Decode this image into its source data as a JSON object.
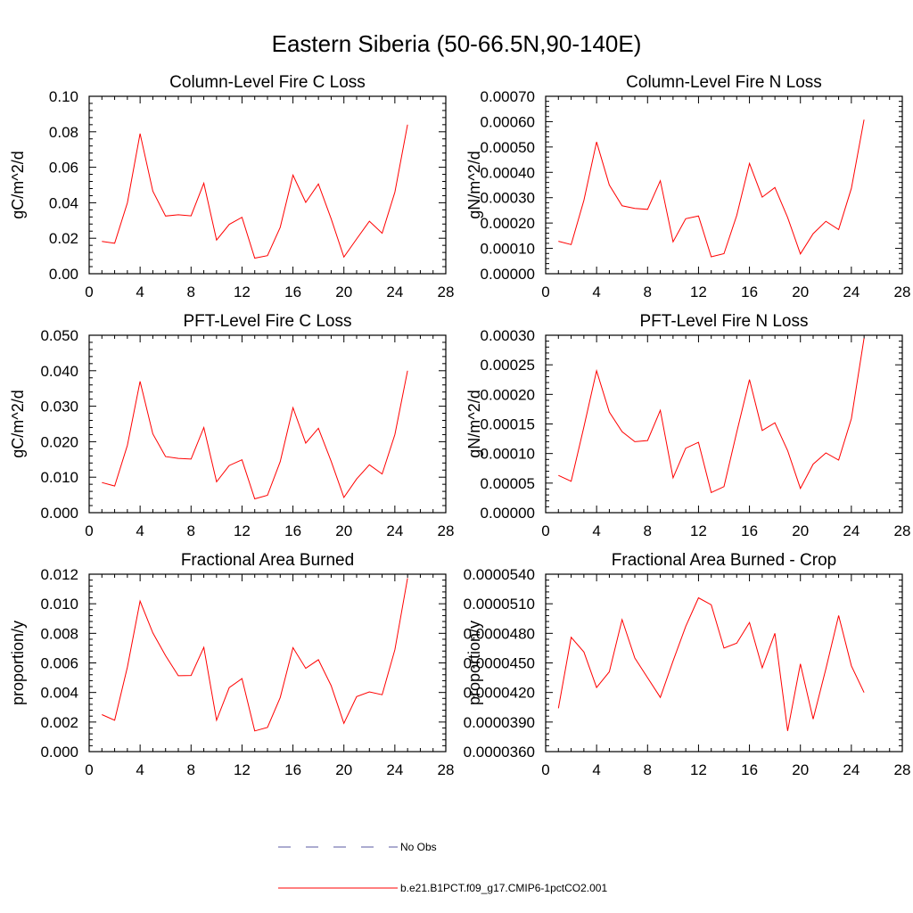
{
  "title": "Eastern Siberia (50-66.5N,90-140E)",
  "legend": {
    "placement": "bottom-center",
    "entries": [
      {
        "label": "No Obs",
        "color": "#5a5aa0",
        "style": "dashed"
      },
      {
        "label": "b.e21.B1PCT.f09_g17.CMIP6-1pctCO2.001",
        "color": "#ff0000",
        "style": "solid"
      }
    ]
  },
  "chart_data": [
    {
      "type": "line",
      "title": "Column-Level Fire C Loss",
      "ylabel": "gC/m^2/d",
      "xlim": [
        0,
        28
      ],
      "ylim": [
        0,
        0.1
      ],
      "xticks": [
        0,
        4,
        8,
        12,
        16,
        20,
        24,
        28
      ],
      "xtick_labels": [
        "0",
        "4",
        "8",
        "12",
        "16",
        "20",
        "24",
        "28"
      ],
      "yticks": [
        0,
        0.02,
        0.04,
        0.06,
        0.08,
        0.1
      ],
      "ytick_labels": [
        "0.00",
        "0.02",
        "0.04",
        "0.06",
        "0.08",
        "0.10"
      ],
      "grid": false,
      "series": [
        {
          "color": "#ff0000",
          "x": [
            1,
            2,
            3,
            4,
            5,
            6,
            7,
            8,
            9,
            10,
            11,
            12,
            13,
            14,
            15,
            16,
            17,
            18,
            19,
            20,
            21,
            22,
            23,
            24,
            25
          ],
          "values": [
            0.0182,
            0.0172,
            0.04,
            0.079,
            0.0466,
            0.0325,
            0.0332,
            0.0326,
            0.051,
            0.019,
            0.0278,
            0.0318,
            0.0088,
            0.0102,
            0.0262,
            0.0556,
            0.0402,
            0.0506,
            0.031,
            0.0094,
            0.0196,
            0.0296,
            0.0228,
            0.046,
            0.084
          ]
        }
      ]
    },
    {
      "type": "line",
      "title": "Column-Level Fire N Loss",
      "ylabel": "gN/m^2/d",
      "xlim": [
        0,
        28
      ],
      "ylim": [
        0,
        0.0007
      ],
      "xticks": [
        0,
        4,
        8,
        12,
        16,
        20,
        24,
        28
      ],
      "xtick_labels": [
        "0",
        "4",
        "8",
        "12",
        "16",
        "20",
        "24",
        "28"
      ],
      "yticks": [
        0,
        0.0001,
        0.0002,
        0.0003,
        0.0004,
        0.0005,
        0.0006,
        0.0007
      ],
      "ytick_labels": [
        "0.00000",
        "0.00010",
        "0.00020",
        "0.00030",
        "0.00040",
        "0.00050",
        "0.00060",
        "0.00070"
      ],
      "grid": false,
      "series": [
        {
          "color": "#ff0000",
          "x": [
            1,
            2,
            3,
            4,
            5,
            6,
            7,
            8,
            9,
            10,
            11,
            12,
            13,
            14,
            15,
            16,
            17,
            18,
            19,
            20,
            21,
            22,
            23,
            24,
            25
          ],
          "values": [
            0.000128,
            0.000115,
            0.00029,
            0.00052,
            0.00035,
            0.000268,
            0.000258,
            0.000254,
            0.000367,
            0.000126,
            0.000217,
            0.000228,
            6.7e-05,
            7.9e-05,
            0.00023,
            0.000435,
            0.000302,
            0.00034,
            0.000222,
            7.8e-05,
            0.000158,
            0.000207,
            0.000174,
            0.000337,
            0.000608
          ]
        }
      ]
    },
    {
      "type": "line",
      "title": "PFT-Level Fire C Loss",
      "ylabel": "gC/m^2/d",
      "xlim": [
        0,
        28
      ],
      "ylim": [
        0,
        0.05
      ],
      "xticks": [
        0,
        4,
        8,
        12,
        16,
        20,
        24,
        28
      ],
      "xtick_labels": [
        "0",
        "4",
        "8",
        "12",
        "16",
        "20",
        "24",
        "28"
      ],
      "yticks": [
        0,
        0.01,
        0.02,
        0.03,
        0.04,
        0.05
      ],
      "ytick_labels": [
        "0.000",
        "0.010",
        "0.020",
        "0.030",
        "0.040",
        "0.050"
      ],
      "grid": false,
      "series": [
        {
          "color": "#ff0000",
          "x": [
            1,
            2,
            3,
            4,
            5,
            6,
            7,
            8,
            9,
            10,
            11,
            12,
            13,
            14,
            15,
            16,
            17,
            18,
            19,
            20,
            21,
            22,
            23,
            24,
            25
          ],
          "values": [
            0.0085,
            0.0075,
            0.019,
            0.037,
            0.0222,
            0.0158,
            0.0153,
            0.0151,
            0.024,
            0.0087,
            0.0133,
            0.0149,
            0.0039,
            0.0049,
            0.0144,
            0.0296,
            0.0196,
            0.0238,
            0.0145,
            0.0043,
            0.0095,
            0.0135,
            0.0109,
            0.022,
            0.04
          ]
        }
      ]
    },
    {
      "type": "line",
      "title": "PFT-Level Fire N Loss",
      "ylabel": "gN/m^2/d",
      "xlim": [
        0,
        28
      ],
      "ylim": [
        0,
        0.0003
      ],
      "xticks": [
        0,
        4,
        8,
        12,
        16,
        20,
        24,
        28
      ],
      "xtick_labels": [
        "0",
        "4",
        "8",
        "12",
        "16",
        "20",
        "24",
        "28"
      ],
      "yticks": [
        0,
        5e-05,
        0.0001,
        0.00015,
        0.0002,
        0.00025,
        0.0003
      ],
      "ytick_labels": [
        "0.00000",
        "0.00005",
        "0.00010",
        "0.00015",
        "0.00020",
        "0.00025",
        "0.00030"
      ],
      "grid": false,
      "series": [
        {
          "color": "#ff0000",
          "x": [
            1,
            2,
            3,
            4,
            5,
            6,
            7,
            8,
            9,
            10,
            11,
            12,
            13,
            14,
            15,
            16,
            17,
            18,
            19,
            20,
            21,
            22,
            23,
            24,
            25
          ],
          "values": [
            6.3e-05,
            5.3e-05,
            0.000145,
            0.00024,
            0.00017,
            0.000137,
            0.00012,
            0.000122,
            0.000173,
            5.9e-05,
            0.000109,
            0.000119,
            3.4e-05,
            4.4e-05,
            0.000136,
            0.000225,
            0.000139,
            0.000152,
            0.000105,
            4.1e-05,
            8.2e-05,
            0.000101,
            8.9e-05,
            0.000159,
            0.000295
          ]
        }
      ]
    },
    {
      "type": "line",
      "title": "Fractional Area Burned",
      "ylabel": "proportion/y",
      "xlim": [
        0,
        28
      ],
      "ylim": [
        0,
        0.012
      ],
      "xticks": [
        0,
        4,
        8,
        12,
        16,
        20,
        24,
        28
      ],
      "xtick_labels": [
        "0",
        "4",
        "8",
        "12",
        "16",
        "20",
        "24",
        "28"
      ],
      "yticks": [
        0,
        0.002,
        0.004,
        0.006,
        0.008,
        0.01,
        0.012
      ],
      "ytick_labels": [
        "0.000",
        "0.002",
        "0.004",
        "0.006",
        "0.008",
        "0.010",
        "0.012"
      ],
      "grid": false,
      "series": [
        {
          "color": "#ff0000",
          "x": [
            1,
            2,
            3,
            4,
            5,
            6,
            7,
            8,
            9,
            10,
            11,
            12,
            13,
            14,
            15,
            16,
            17,
            18,
            19,
            20,
            21,
            22,
            23,
            24,
            25
          ],
          "values": [
            0.0025,
            0.00212,
            0.00572,
            0.01018,
            0.00803,
            0.00649,
            0.00513,
            0.00515,
            0.00705,
            0.00212,
            0.00433,
            0.00494,
            0.0014,
            0.00164,
            0.00366,
            0.00703,
            0.00563,
            0.00622,
            0.00446,
            0.00191,
            0.00372,
            0.00404,
            0.00385,
            0.00689,
            0.01172
          ]
        }
      ]
    },
    {
      "type": "line",
      "title": "Fractional Area Burned - Crop",
      "ylabel": "proportion/y",
      "xlim": [
        0,
        28
      ],
      "ylim": [
        3.6e-05,
        5.4e-05
      ],
      "xticks": [
        0,
        4,
        8,
        12,
        16,
        20,
        24,
        28
      ],
      "xtick_labels": [
        "0",
        "4",
        "8",
        "12",
        "16",
        "20",
        "24",
        "28"
      ],
      "yticks": [
        3.6e-05,
        3.9e-05,
        4.2e-05,
        4.5e-05,
        4.8e-05,
        5.1e-05,
        5.4e-05
      ],
      "ytick_labels": [
        "0.0000360",
        "0.0000390",
        "0.0000420",
        "0.0000450",
        "0.0000480",
        "0.0000510",
        "0.0000540"
      ],
      "grid": false,
      "series": [
        {
          "color": "#ff0000",
          "x": [
            1,
            2,
            3,
            4,
            5,
            6,
            7,
            8,
            9,
            10,
            11,
            12,
            13,
            14,
            15,
            16,
            17,
            18,
            19,
            20,
            21,
            22,
            23,
            24,
            25
          ],
          "values": [
            4.04e-05,
            4.76e-05,
            4.61e-05,
            4.25e-05,
            4.41e-05,
            4.94e-05,
            4.55e-05,
            4.35e-05,
            4.15e-05,
            4.52e-05,
            4.87e-05,
            5.16e-05,
            5.09e-05,
            4.65e-05,
            4.7e-05,
            4.91e-05,
            4.45e-05,
            4.8e-05,
            3.81e-05,
            4.49e-05,
            3.93e-05,
            4.44e-05,
            4.98e-05,
            4.47e-05,
            4.2e-05
          ]
        }
      ]
    }
  ]
}
